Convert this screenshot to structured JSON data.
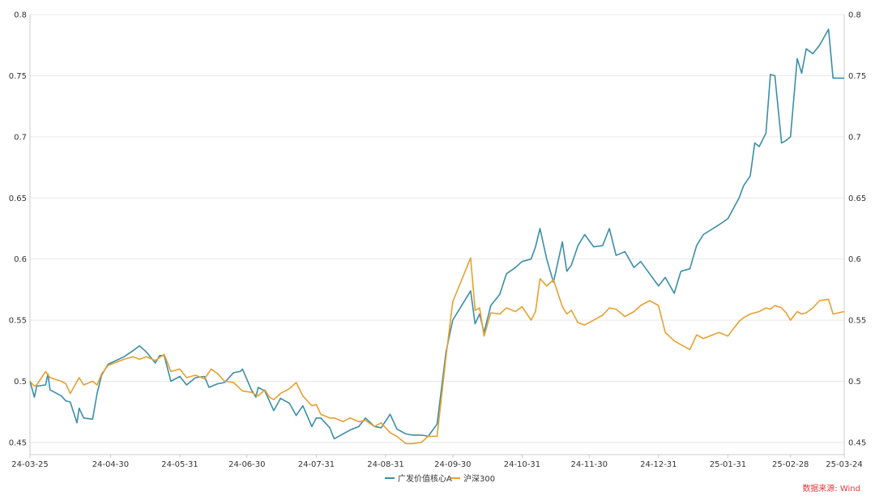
{
  "chart_data": {
    "type": "line",
    "title": "",
    "xlabel": "",
    "ylabel": "",
    "ylim": [
      0.44,
      0.8
    ],
    "yticks": [
      "0.8",
      "0.75",
      "0.7",
      "0.65",
      "0.6",
      "0.55",
      "0.5",
      "0.45"
    ],
    "xticks": [
      "24-03-25",
      "24-04-30",
      "24-05-31",
      "24-06-30",
      "24-07-31",
      "24-08-31",
      "24-09-30",
      "24-10-31",
      "24-11-30",
      "24-12-31",
      "25-01-31",
      "25-02-28",
      "25-03-24"
    ],
    "grid": "horizontal",
    "right_axis": true,
    "legend_position": "bottom",
    "colors": {
      "series_0": "#3a8ea8",
      "series_1": "#e8a030",
      "gridline": "#e8e8e8",
      "axis": "#cccccc",
      "source": "#e23b3b"
    },
    "series": [
      {
        "name": "广发价值核心A",
        "points": [
          [
            "2024-03-25",
            0.5
          ],
          [
            "2024-03-27",
            0.487
          ],
          [
            "2024-03-28",
            0.496
          ],
          [
            "2024-04-01",
            0.497
          ],
          [
            "2024-04-02",
            0.506
          ],
          [
            "2024-04-03",
            0.493
          ],
          [
            "2024-04-08",
            0.488
          ],
          [
            "2024-04-10",
            0.484
          ],
          [
            "2024-04-12",
            0.483
          ],
          [
            "2024-04-15",
            0.466
          ],
          [
            "2024-04-16",
            0.478
          ],
          [
            "2024-04-18",
            0.47
          ],
          [
            "2024-04-22",
            0.469
          ],
          [
            "2024-04-24",
            0.49
          ],
          [
            "2024-04-26",
            0.505
          ],
          [
            "2024-04-29",
            0.514
          ],
          [
            "2024-05-06",
            0.52
          ],
          [
            "2024-05-10",
            0.525
          ],
          [
            "2024-05-13",
            0.529
          ],
          [
            "2024-05-16",
            0.524
          ],
          [
            "2024-05-20",
            0.515
          ],
          [
            "2024-05-22",
            0.521
          ],
          [
            "2024-05-24",
            0.521
          ],
          [
            "2024-05-27",
            0.5
          ],
          [
            "2024-05-31",
            0.504
          ],
          [
            "2024-06-03",
            0.497
          ],
          [
            "2024-06-07",
            0.503
          ],
          [
            "2024-06-11",
            0.504
          ],
          [
            "2024-06-13",
            0.495
          ],
          [
            "2024-06-17",
            0.498
          ],
          [
            "2024-06-20",
            0.499
          ],
          [
            "2024-06-24",
            0.507
          ],
          [
            "2024-06-27",
            0.508
          ],
          [
            "2024-06-28",
            0.51
          ],
          [
            "2024-07-02",
            0.493
          ],
          [
            "2024-07-04",
            0.487
          ],
          [
            "2024-07-05",
            0.495
          ],
          [
            "2024-07-08",
            0.492
          ],
          [
            "2024-07-10",
            0.484
          ],
          [
            "2024-07-12",
            0.476
          ],
          [
            "2024-07-15",
            0.486
          ],
          [
            "2024-07-19",
            0.482
          ],
          [
            "2024-07-22",
            0.472
          ],
          [
            "2024-07-25",
            0.48
          ],
          [
            "2024-07-29",
            0.463
          ],
          [
            "2024-07-31",
            0.47
          ],
          [
            "2024-08-02",
            0.47
          ],
          [
            "2024-08-06",
            0.462
          ],
          [
            "2024-08-08",
            0.453
          ],
          [
            "2024-08-12",
            0.457
          ],
          [
            "2024-08-15",
            0.46
          ],
          [
            "2024-08-19",
            0.463
          ],
          [
            "2024-08-22",
            0.47
          ],
          [
            "2024-08-26",
            0.463
          ],
          [
            "2024-08-29",
            0.462
          ],
          [
            "2024-09-02",
            0.473
          ],
          [
            "2024-09-05",
            0.461
          ],
          [
            "2024-09-09",
            0.457
          ],
          [
            "2024-09-12",
            0.456
          ],
          [
            "2024-09-16",
            0.456
          ],
          [
            "2024-09-19",
            0.455
          ],
          [
            "2024-09-23",
            0.465
          ],
          [
            "2024-09-27",
            0.524
          ],
          [
            "2024-09-30",
            0.55
          ],
          [
            "2024-10-08",
            0.574
          ],
          [
            "2024-10-10",
            0.547
          ],
          [
            "2024-10-12",
            0.555
          ],
          [
            "2024-10-14",
            0.54
          ],
          [
            "2024-10-17",
            0.562
          ],
          [
            "2024-10-21",
            0.571
          ],
          [
            "2024-10-24",
            0.588
          ],
          [
            "2024-10-28",
            0.593
          ],
          [
            "2024-10-31",
            0.598
          ],
          [
            "2024-11-04",
            0.6
          ],
          [
            "2024-11-06",
            0.61
          ],
          [
            "2024-11-08",
            0.625
          ],
          [
            "2024-11-11",
            0.6
          ],
          [
            "2024-11-14",
            0.581
          ],
          [
            "2024-11-18",
            0.614
          ],
          [
            "2024-11-20",
            0.59
          ],
          [
            "2024-11-22",
            0.595
          ],
          [
            "2024-11-25",
            0.611
          ],
          [
            "2024-11-28",
            0.62
          ],
          [
            "2024-12-02",
            0.61
          ],
          [
            "2024-12-06",
            0.611
          ],
          [
            "2024-12-09",
            0.625
          ],
          [
            "2024-12-12",
            0.603
          ],
          [
            "2024-12-16",
            0.606
          ],
          [
            "2024-12-20",
            0.593
          ],
          [
            "2024-12-23",
            0.598
          ],
          [
            "2024-12-27",
            0.588
          ],
          [
            "2024-12-31",
            0.578
          ],
          [
            "2025-01-03",
            0.585
          ],
          [
            "2025-01-07",
            0.572
          ],
          [
            "2025-01-10",
            0.59
          ],
          [
            "2025-01-14",
            0.592
          ],
          [
            "2025-01-17",
            0.611
          ],
          [
            "2025-01-20",
            0.62
          ],
          [
            "2025-01-27",
            0.628
          ],
          [
            "2025-01-31",
            0.633
          ],
          [
            "2025-02-05",
            0.65
          ],
          [
            "2025-02-07",
            0.66
          ],
          [
            "2025-02-10",
            0.668
          ],
          [
            "2025-02-12",
            0.695
          ],
          [
            "2025-02-14",
            0.692
          ],
          [
            "2025-02-17",
            0.703
          ],
          [
            "2025-02-19",
            0.751
          ],
          [
            "2025-02-21",
            0.75
          ],
          [
            "2025-02-24",
            0.695
          ],
          [
            "2025-02-26",
            0.697
          ],
          [
            "2025-02-28",
            0.7
          ],
          [
            "2025-03-03",
            0.764
          ],
          [
            "2025-03-05",
            0.752
          ],
          [
            "2025-03-07",
            0.772
          ],
          [
            "2025-03-10",
            0.768
          ],
          [
            "2025-03-13",
            0.775
          ],
          [
            "2025-03-17",
            0.788
          ],
          [
            "2025-03-19",
            0.748
          ],
          [
            "2025-03-24",
            0.748
          ]
        ]
      },
      {
        "name": "沪深300",
        "points": [
          [
            "2024-03-25",
            0.5
          ],
          [
            "2024-03-27",
            0.496
          ],
          [
            "2024-03-28",
            0.497
          ],
          [
            "2024-04-01",
            0.508
          ],
          [
            "2024-04-03",
            0.503
          ],
          [
            "2024-04-08",
            0.5
          ],
          [
            "2024-04-10",
            0.498
          ],
          [
            "2024-04-12",
            0.49
          ],
          [
            "2024-04-16",
            0.503
          ],
          [
            "2024-04-18",
            0.497
          ],
          [
            "2024-04-22",
            0.5
          ],
          [
            "2024-04-24",
            0.497
          ],
          [
            "2024-04-26",
            0.506
          ],
          [
            "2024-04-29",
            0.513
          ],
          [
            "2024-05-06",
            0.518
          ],
          [
            "2024-05-10",
            0.52
          ],
          [
            "2024-05-13",
            0.518
          ],
          [
            "2024-05-16",
            0.52
          ],
          [
            "2024-05-20",
            0.517
          ],
          [
            "2024-05-24",
            0.522
          ],
          [
            "2024-05-27",
            0.508
          ],
          [
            "2024-05-31",
            0.51
          ],
          [
            "2024-06-03",
            0.503
          ],
          [
            "2024-06-07",
            0.505
          ],
          [
            "2024-06-11",
            0.502
          ],
          [
            "2024-06-14",
            0.51
          ],
          [
            "2024-06-17",
            0.506
          ],
          [
            "2024-06-20",
            0.5
          ],
          [
            "2024-06-24",
            0.499
          ],
          [
            "2024-06-28",
            0.492
          ],
          [
            "2024-07-02",
            0.491
          ],
          [
            "2024-07-05",
            0.488
          ],
          [
            "2024-07-08",
            0.493
          ],
          [
            "2024-07-10",
            0.487
          ],
          [
            "2024-07-12",
            0.485
          ],
          [
            "2024-07-15",
            0.49
          ],
          [
            "2024-07-19",
            0.494
          ],
          [
            "2024-07-22",
            0.499
          ],
          [
            "2024-07-25",
            0.488
          ],
          [
            "2024-07-29",
            0.48
          ],
          [
            "2024-07-31",
            0.481
          ],
          [
            "2024-08-02",
            0.473
          ],
          [
            "2024-08-06",
            0.47
          ],
          [
            "2024-08-08",
            0.47
          ],
          [
            "2024-08-12",
            0.467
          ],
          [
            "2024-08-15",
            0.47
          ],
          [
            "2024-08-19",
            0.467
          ],
          [
            "2024-08-22",
            0.468
          ],
          [
            "2024-08-26",
            0.463
          ],
          [
            "2024-08-29",
            0.466
          ],
          [
            "2024-09-02",
            0.458
          ],
          [
            "2024-09-05",
            0.455
          ],
          [
            "2024-09-09",
            0.449
          ],
          [
            "2024-09-12",
            0.449
          ],
          [
            "2024-09-16",
            0.45
          ],
          [
            "2024-09-19",
            0.455
          ],
          [
            "2024-09-23",
            0.455
          ],
          [
            "2024-09-27",
            0.52
          ],
          [
            "2024-09-30",
            0.565
          ],
          [
            "2024-10-08",
            0.601
          ],
          [
            "2024-10-10",
            0.558
          ],
          [
            "2024-10-12",
            0.56
          ],
          [
            "2024-10-14",
            0.537
          ],
          [
            "2024-10-17",
            0.556
          ],
          [
            "2024-10-21",
            0.555
          ],
          [
            "2024-10-24",
            0.56
          ],
          [
            "2024-10-28",
            0.557
          ],
          [
            "2024-10-31",
            0.561
          ],
          [
            "2024-11-04",
            0.55
          ],
          [
            "2024-11-06",
            0.557
          ],
          [
            "2024-11-08",
            0.584
          ],
          [
            "2024-11-11",
            0.578
          ],
          [
            "2024-11-14",
            0.583
          ],
          [
            "2024-11-18",
            0.561
          ],
          [
            "2024-11-20",
            0.555
          ],
          [
            "2024-11-22",
            0.558
          ],
          [
            "2024-11-25",
            0.548
          ],
          [
            "2024-11-28",
            0.546
          ],
          [
            "2024-12-02",
            0.55
          ],
          [
            "2024-12-06",
            0.554
          ],
          [
            "2024-12-09",
            0.56
          ],
          [
            "2024-12-12",
            0.559
          ],
          [
            "2024-12-16",
            0.553
          ],
          [
            "2024-12-20",
            0.557
          ],
          [
            "2024-12-23",
            0.562
          ],
          [
            "2024-12-27",
            0.566
          ],
          [
            "2024-12-31",
            0.562
          ],
          [
            "2025-01-03",
            0.54
          ],
          [
            "2025-01-07",
            0.533
          ],
          [
            "2025-01-10",
            0.53
          ],
          [
            "2025-01-14",
            0.526
          ],
          [
            "2025-01-17",
            0.538
          ],
          [
            "2025-01-20",
            0.535
          ],
          [
            "2025-01-27",
            0.54
          ],
          [
            "2025-01-31",
            0.537
          ],
          [
            "2025-02-05",
            0.549
          ],
          [
            "2025-02-07",
            0.552
          ],
          [
            "2025-02-10",
            0.555
          ],
          [
            "2025-02-12",
            0.556
          ],
          [
            "2025-02-14",
            0.557
          ],
          [
            "2025-02-17",
            0.56
          ],
          [
            "2025-02-19",
            0.559
          ],
          [
            "2025-02-21",
            0.562
          ],
          [
            "2025-02-24",
            0.56
          ],
          [
            "2025-02-26",
            0.556
          ],
          [
            "2025-02-28",
            0.55
          ],
          [
            "2025-03-03",
            0.557
          ],
          [
            "2025-03-05",
            0.555
          ],
          [
            "2025-03-07",
            0.556
          ],
          [
            "2025-03-10",
            0.56
          ],
          [
            "2025-03-13",
            0.566
          ],
          [
            "2025-03-17",
            0.567
          ],
          [
            "2025-03-19",
            0.555
          ],
          [
            "2025-03-24",
            0.557
          ]
        ]
      }
    ]
  },
  "source_note": "数据来源: Wind"
}
